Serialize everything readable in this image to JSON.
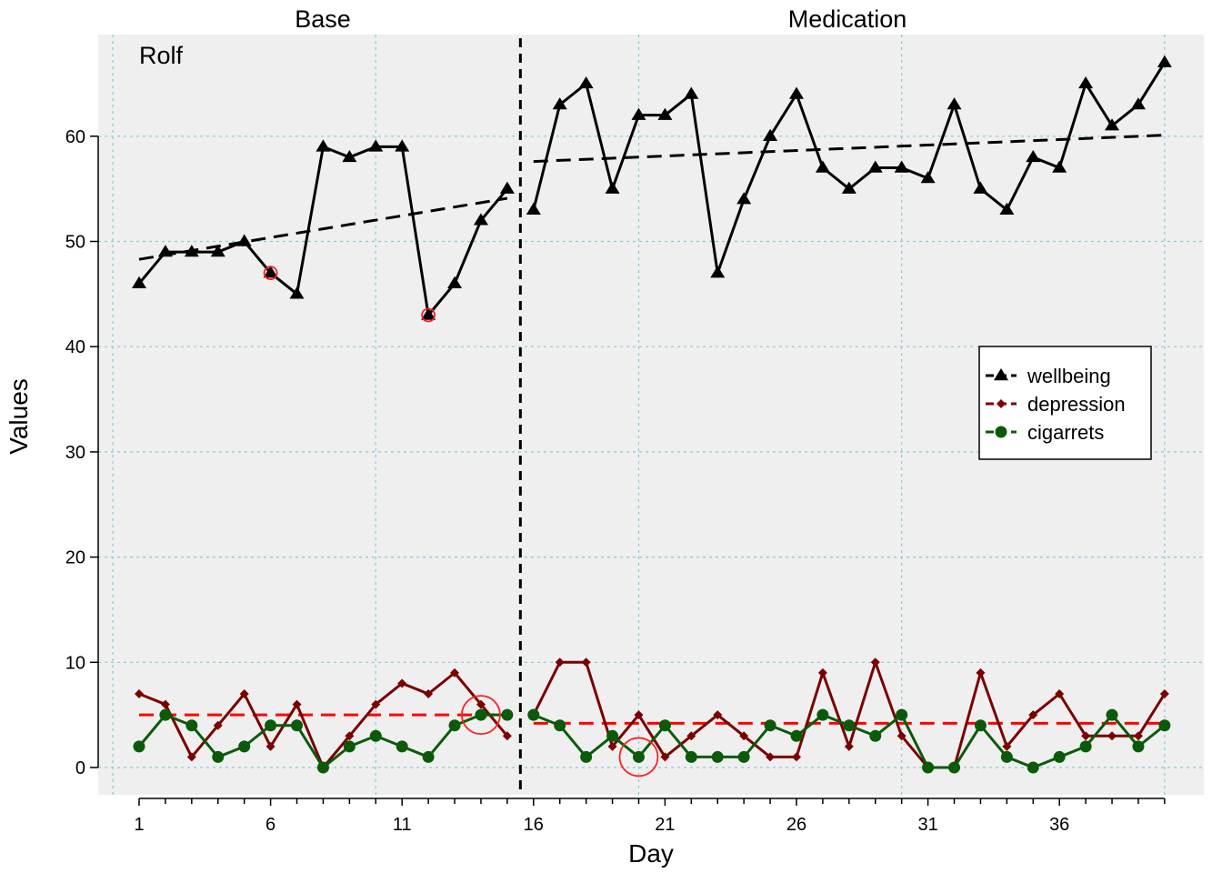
{
  "chart_data": {
    "type": "line",
    "panel_label": "Rolf",
    "phases": [
      {
        "label": "Base",
        "days": [
          1,
          15
        ]
      },
      {
        "label": "Medication",
        "days": [
          16,
          40
        ]
      }
    ],
    "phase_change_after_day": 15,
    "xlabel": "Day",
    "ylabel": "Values",
    "xlim": [
      0,
      41
    ],
    "ylim": [
      -3,
      70
    ],
    "x_ticks": [
      1,
      6,
      11,
      16,
      21,
      26,
      31,
      36
    ],
    "y_ticks": [
      0,
      10,
      20,
      30,
      40,
      50,
      60
    ],
    "grid": true,
    "legend_position": "right",
    "x": [
      1,
      2,
      3,
      4,
      5,
      6,
      7,
      8,
      9,
      10,
      11,
      12,
      13,
      14,
      15,
      16,
      17,
      18,
      19,
      20,
      21,
      22,
      23,
      24,
      25,
      26,
      27,
      28,
      29,
      30,
      31,
      32,
      33,
      34,
      35,
      36,
      37,
      38,
      39,
      40
    ],
    "series": [
      {
        "name": "wellbeing",
        "color": "#000000",
        "marker": "triangle",
        "values": [
          46,
          49,
          49,
          49,
          50,
          47,
          45,
          59,
          58,
          59,
          59,
          43,
          46,
          52,
          55,
          53,
          63,
          65,
          55,
          62,
          62,
          64,
          47,
          54,
          60,
          64,
          57,
          55,
          57,
          57,
          56,
          63,
          55,
          53,
          58,
          57,
          65,
          61,
          63,
          67
        ]
      },
      {
        "name": "depression",
        "color": "#7a0000",
        "marker": "diamond",
        "values": [
          7,
          6,
          1,
          4,
          7,
          2,
          6,
          0,
          3,
          6,
          8,
          7,
          9,
          6,
          3,
          5,
          10,
          10,
          2,
          5,
          1,
          3,
          5,
          3,
          1,
          1,
          9,
          2,
          10,
          3,
          0,
          0,
          9,
          2,
          5,
          7,
          3,
          3,
          3,
          7
        ]
      },
      {
        "name": "cigarrets",
        "color": "#0a5a0a",
        "marker": "circle",
        "values": [
          2,
          5,
          4,
          1,
          2,
          4,
          4,
          0,
          2,
          3,
          2,
          1,
          4,
          5,
          5,
          5,
          4,
          1,
          3,
          1,
          4,
          1,
          1,
          1,
          4,
          3,
          5,
          4,
          3,
          5,
          0,
          0,
          4,
          1,
          0,
          1,
          2,
          5,
          2,
          4
        ]
      }
    ],
    "trend_lines": [
      {
        "series": "wellbeing",
        "color": "#000000",
        "segments": [
          {
            "x": [
              1,
              15
            ],
            "y": [
              48.3,
              54.1
            ]
          },
          {
            "x": [
              16,
              40
            ],
            "y": [
              57.6,
              60.1
            ]
          }
        ]
      },
      {
        "series": "depression",
        "color": "#ff0000",
        "segments": [
          {
            "x": [
              1,
              15
            ],
            "y": [
              5.0,
              5.0
            ]
          },
          {
            "x": [
              16,
              40
            ],
            "y": [
              4.2,
              4.2
            ]
          }
        ]
      }
    ],
    "highlights": [
      {
        "x": 6,
        "y": 47,
        "size": "small"
      },
      {
        "x": 12,
        "y": 43,
        "size": "small"
      },
      {
        "x": 14,
        "y": 5,
        "size": "large"
      },
      {
        "x": 20,
        "y": 1,
        "size": "large"
      }
    ]
  }
}
